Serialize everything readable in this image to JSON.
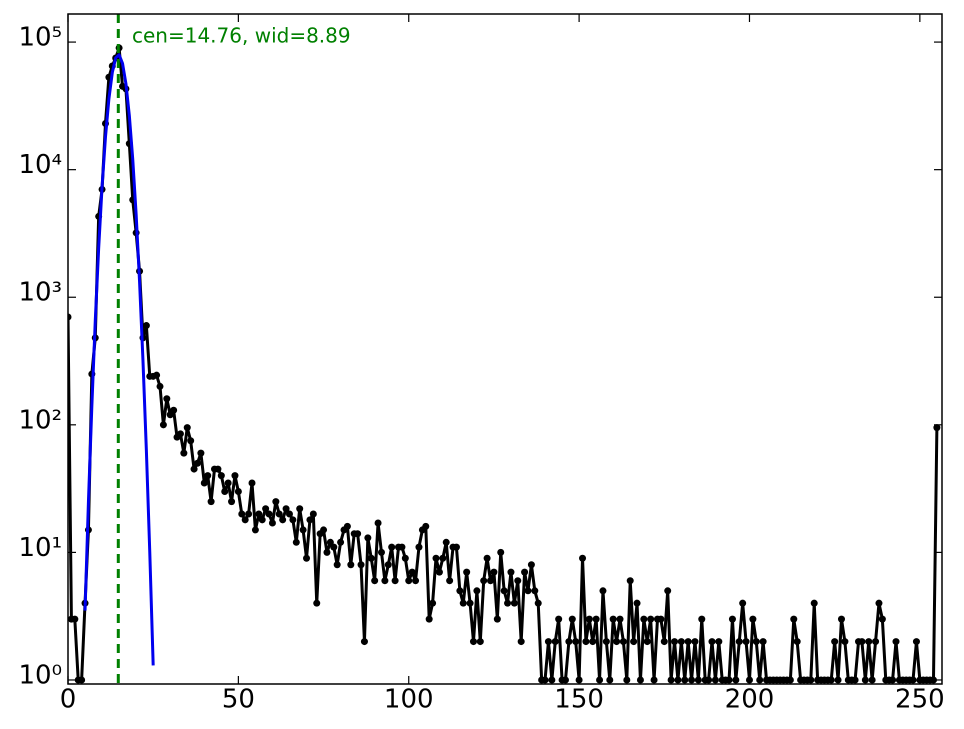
{
  "chart_data": {
    "type": "line",
    "log_y": true,
    "annotation": "cen=14.76, wid=8.89",
    "vline": {
      "x": 14.76,
      "color": "#008000"
    },
    "xlim": [
      0,
      256.5
    ],
    "ylim": [
      0.93,
      166000
    ],
    "xticks": [
      0,
      50,
      100,
      150,
      200,
      250
    ],
    "yticks": [
      {
        "value": 1,
        "label": "10⁰"
      },
      {
        "value": 10,
        "label": "10¹"
      },
      {
        "value": 100,
        "label": "10²"
      },
      {
        "value": 1000,
        "label": "10³"
      },
      {
        "value": 10000,
        "label": "10⁴"
      },
      {
        "value": 100000,
        "label": "10⁵"
      }
    ],
    "series": [
      {
        "color": "#000000",
        "markers": true,
        "x": [
          0,
          1,
          2,
          3,
          4,
          5,
          6,
          7,
          8,
          9,
          10,
          11,
          12,
          13,
          14,
          15,
          16,
          17,
          18,
          19,
          20,
          21,
          22,
          23,
          24,
          25,
          26,
          27,
          28,
          29,
          30,
          31,
          32,
          33,
          34,
          35,
          36,
          37,
          38,
          39,
          40,
          41,
          42,
          43,
          44,
          45,
          46,
          47,
          48,
          49,
          50,
          51,
          52,
          53,
          54,
          55,
          56,
          57,
          58,
          59,
          60,
          61,
          62,
          63,
          64,
          65,
          66,
          67,
          68,
          69,
          70,
          71,
          72,
          73,
          74,
          75,
          76,
          77,
          78,
          79,
          80,
          81,
          82,
          83,
          84,
          85,
          86,
          87,
          88,
          89,
          90,
          91,
          92,
          93,
          94,
          95,
          96,
          97,
          98,
          99,
          100,
          101,
          102,
          103,
          104,
          105,
          106,
          107,
          108,
          109,
          110,
          111,
          112,
          113,
          114,
          115,
          116,
          117,
          118,
          119,
          120,
          121,
          122,
          123,
          124,
          125,
          126,
          127,
          128,
          129,
          130,
          131,
          132,
          133,
          134,
          135,
          136,
          137,
          138,
          139,
          140,
          141,
          142,
          143,
          144,
          145,
          146,
          147,
          148,
          149,
          150,
          151,
          152,
          153,
          154,
          155,
          156,
          157,
          158,
          159,
          160,
          161,
          162,
          163,
          164,
          165,
          166,
          167,
          168,
          169,
          170,
          171,
          172,
          173,
          174,
          175,
          176,
          177,
          178,
          179,
          180,
          181,
          182,
          183,
          184,
          185,
          186,
          187,
          188,
          189,
          190,
          191,
          192,
          193,
          194,
          195,
          196,
          197,
          198,
          199,
          200,
          201,
          202,
          203,
          204,
          205,
          206,
          207,
          208,
          209,
          210,
          211,
          212,
          213,
          214,
          215,
          216,
          217,
          218,
          219,
          220,
          221,
          222,
          223,
          224,
          225,
          226,
          227,
          228,
          229,
          230,
          231,
          232,
          233,
          234,
          235,
          236,
          237,
          238,
          239,
          240,
          241,
          242,
          243,
          244,
          245,
          246,
          247,
          248,
          249,
          250,
          251,
          252,
          253,
          254,
          255
        ],
        "values": [
          700,
          3,
          3,
          1,
          1,
          4,
          15,
          250,
          480,
          4300,
          7000,
          23000,
          53000,
          65000,
          75000,
          90000,
          45000,
          43000,
          16000,
          5800,
          3200,
          1600,
          480,
          600,
          240,
          240,
          245,
          200,
          100,
          160,
          120,
          130,
          80,
          85,
          60,
          95,
          75,
          45,
          50,
          60,
          35,
          40,
          25,
          45,
          45,
          40,
          30,
          35,
          25,
          40,
          30,
          20,
          18,
          20,
          35,
          15,
          20,
          18,
          22,
          20,
          17,
          25,
          20,
          18,
          22,
          20,
          18,
          12,
          22,
          15,
          9,
          18,
          20,
          4,
          14,
          15,
          10,
          12,
          11,
          8,
          12,
          15,
          16,
          8,
          14,
          14,
          8,
          2,
          13,
          9,
          6,
          17,
          10,
          6,
          8,
          11,
          6,
          11,
          11,
          9,
          6,
          7,
          6,
          11,
          15,
          16,
          3,
          4,
          9,
          7,
          9,
          12,
          6,
          11,
          11,
          5,
          4,
          7,
          4,
          2,
          5,
          2,
          6,
          9,
          6,
          7,
          3,
          10,
          5,
          4,
          7,
          4,
          6,
          2,
          7,
          5,
          8,
          5,
          4,
          1,
          1,
          2,
          1,
          2,
          3,
          1,
          1,
          2,
          3,
          2,
          1,
          9,
          2,
          3,
          2,
          3,
          1,
          5,
          2,
          1,
          3,
          2,
          3,
          2,
          1,
          6,
          2,
          4,
          1,
          3,
          2,
          3,
          1,
          3,
          3,
          2,
          5,
          1,
          2,
          1,
          2,
          1,
          2,
          1,
          2,
          1,
          3,
          1,
          1,
          2,
          1,
          2,
          1,
          1,
          1,
          3,
          1,
          2,
          4,
          2,
          1,
          3,
          2,
          1,
          2,
          1,
          1,
          1,
          1,
          1,
          1,
          1,
          1,
          3,
          2,
          1,
          1,
          1,
          1,
          4,
          1,
          1,
          1,
          1,
          1,
          2,
          1,
          3,
          2,
          1,
          1,
          1,
          2,
          2,
          1,
          2,
          1,
          2,
          4,
          3,
          1,
          1,
          1,
          2,
          1,
          1,
          1,
          1,
          1,
          2,
          1,
          1,
          1,
          1,
          1,
          95
        ]
      },
      {
        "color": "#0000ee",
        "markers": false,
        "x": [
          5,
          6,
          7,
          8,
          9,
          10,
          11,
          12,
          13,
          14,
          15,
          16,
          17,
          18,
          19,
          20,
          21,
          22,
          23,
          24,
          25
        ],
        "values": [
          3.5,
          25,
          141,
          650,
          2430,
          7360,
          18070,
          35870,
          57740,
          75280,
          79520,
          68040,
          47180,
          26500,
          12060,
          4440,
          1326,
          320,
          63,
          10,
          1.3
        ]
      }
    ]
  }
}
